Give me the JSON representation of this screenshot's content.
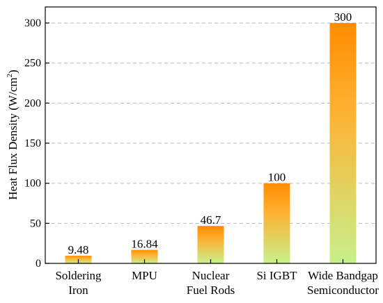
{
  "chart_data": {
    "type": "bar",
    "categories": [
      [
        "Soldering",
        "Iron"
      ],
      [
        "MPU"
      ],
      [
        "Nuclear",
        "Fuel Rods"
      ],
      [
        "Si IGBT"
      ],
      [
        "Wide Bandgap",
        "Semiconductor"
      ]
    ],
    "values": [
      9.48,
      16.84,
      46.7,
      100,
      300
    ],
    "value_labels": [
      "9.48",
      "16.84",
      "46.7",
      "100",
      "300"
    ],
    "ylabel": "Heat Flux Density (W/cm",
    "ylabel_superscript": "2",
    "ylabel_suffix": ")",
    "xlabel": "",
    "ylim": [
      0,
      320
    ],
    "yticks": [
      0,
      50,
      100,
      150,
      200,
      250,
      300
    ],
    "grid": true,
    "bar_gradient": {
      "top": "#ff8c00",
      "bottom": "#c8f08c"
    }
  }
}
